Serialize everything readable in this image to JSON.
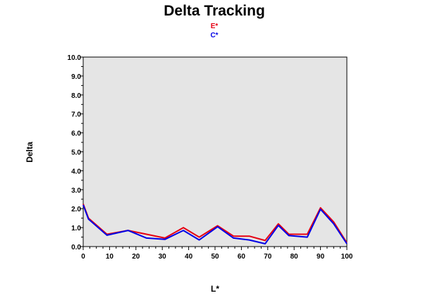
{
  "chart_data": {
    "type": "line",
    "title": "Delta Tracking",
    "xlabel": "L*",
    "ylabel": "Delta",
    "xlim": [
      0,
      100
    ],
    "ylim": [
      0,
      10
    ],
    "x_ticks": [
      "0",
      "10",
      "20",
      "30",
      "40",
      "50",
      "60",
      "70",
      "80",
      "90",
      "100"
    ],
    "y_ticks": [
      "0.0",
      "1.0",
      "2.0",
      "3.0",
      "4.0",
      "5.0",
      "6.0",
      "7.0",
      "8.0",
      "9.0",
      "10.0"
    ],
    "grid": false,
    "legend_position": "top-center",
    "plot_background": "#e5e5e5",
    "series": [
      {
        "name": "E*",
        "color": "#e60012",
        "x": [
          0,
          2,
          9,
          17,
          24,
          31,
          38,
          44,
          51,
          57,
          63,
          69,
          74,
          78,
          85,
          90,
          95,
          100
        ],
        "y": [
          2.25,
          1.5,
          0.65,
          0.85,
          0.65,
          0.45,
          1.0,
          0.5,
          1.1,
          0.55,
          0.55,
          0.32,
          1.2,
          0.65,
          0.65,
          2.05,
          1.3,
          0.2
        ]
      },
      {
        "name": "C*",
        "color": "#0000e6",
        "x": [
          0,
          2,
          9,
          17,
          24,
          31,
          38,
          44,
          51,
          57,
          63,
          69,
          74,
          78,
          85,
          90,
          95,
          100
        ],
        "y": [
          2.2,
          1.45,
          0.6,
          0.85,
          0.45,
          0.38,
          0.85,
          0.35,
          1.05,
          0.45,
          0.35,
          0.15,
          1.12,
          0.58,
          0.5,
          1.97,
          1.2,
          0.15
        ]
      }
    ]
  }
}
